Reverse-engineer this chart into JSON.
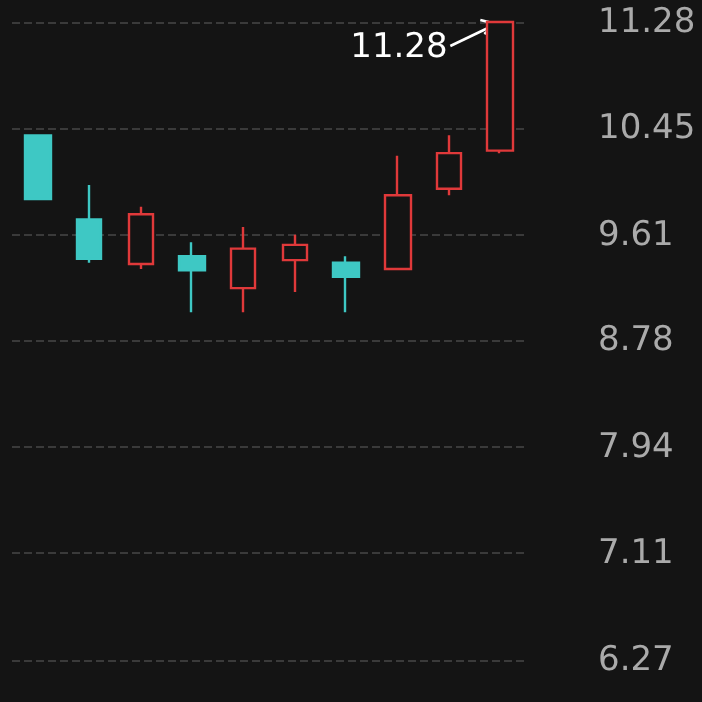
{
  "chart_data": {
    "type": "candlestick",
    "categories": [
      null,
      null,
      null,
      null,
      null,
      null,
      null,
      null,
      null,
      null
    ],
    "ohlc": [
      [
        10.39,
        10.39,
        9.89,
        9.89
      ],
      [
        9.73,
        10.0,
        9.39,
        9.42
      ],
      [
        9.38,
        9.83,
        9.34,
        9.77
      ],
      [
        9.44,
        9.55,
        9.0,
        9.33
      ],
      [
        9.19,
        9.67,
        9.0,
        9.5
      ],
      [
        9.41,
        9.61,
        9.16,
        9.53
      ],
      [
        9.39,
        9.44,
        9.0,
        9.28
      ],
      [
        9.34,
        10.23,
        9.34,
        9.92
      ],
      [
        9.97,
        10.39,
        9.92,
        10.25
      ],
      [
        10.27,
        11.28,
        10.25,
        11.28
      ]
    ],
    "colors": [
      "#3ec8c4",
      "#3ec8c4",
      "#e0393a",
      "#3ec8c4",
      "#e0393a",
      "#e0393a",
      "#3ec8c4",
      "#e0393a",
      "#e0393a",
      "#e0393a"
    ],
    "ylim": [
      6.27,
      11.28
    ],
    "yticks": [
      6.27,
      7.11,
      7.94,
      8.78,
      9.61,
      10.45,
      11.28
    ],
    "grid": "y",
    "tick_labels": "y",
    "annotations": [
      "11.28"
    ]
  }
}
